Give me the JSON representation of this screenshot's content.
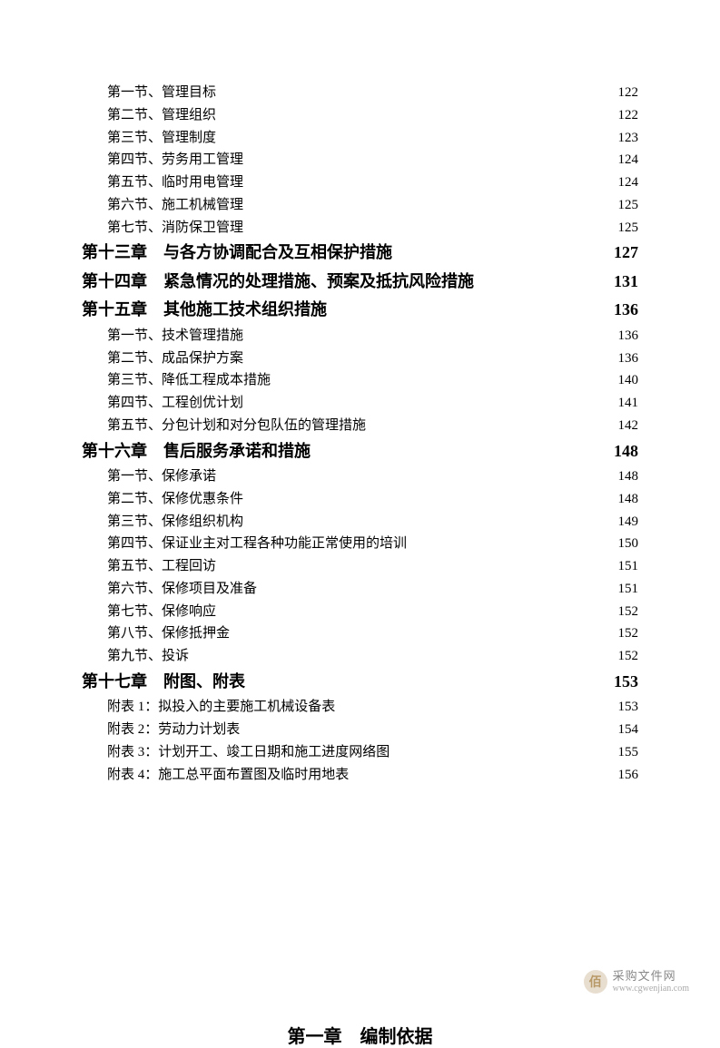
{
  "toc": [
    {
      "type": "sub",
      "label": "第一节、管理目标",
      "page": "122"
    },
    {
      "type": "sub",
      "label": "第二节、管理组织",
      "page": "122"
    },
    {
      "type": "sub",
      "label": "第三节、管理制度",
      "page": "123"
    },
    {
      "type": "sub",
      "label": "第四节、劳务用工管理",
      "page": "124"
    },
    {
      "type": "sub",
      "label": "第五节、临时用电管理",
      "page": "124"
    },
    {
      "type": "sub",
      "label": "第六节、施工机械管理",
      "page": "125"
    },
    {
      "type": "sub",
      "label": "第七节、消防保卫管理",
      "page": "125"
    },
    {
      "type": "chapter",
      "label": "第十三章　与各方协调配合及互相保护措施",
      "page": " 127"
    },
    {
      "type": "chapter",
      "label": "第十四章　紧急情况的处理措施、预案及抵抗风险措施",
      "page": "131"
    },
    {
      "type": "chapter",
      "label": "第十五章　其他施工技术组织措施",
      "page": " 136"
    },
    {
      "type": "sub",
      "label": "第一节、技术管理措施",
      "page": "136"
    },
    {
      "type": "sub",
      "label": "第二节、成品保护方案",
      "page": "136"
    },
    {
      "type": "sub",
      "label": "第三节、降低工程成本措施",
      "page": "140"
    },
    {
      "type": "sub",
      "label": "第四节、工程创优计划",
      "page": "141"
    },
    {
      "type": "sub",
      "label": "第五节、分包计划和对分包队伍的管理措施",
      "page": "142"
    },
    {
      "type": "chapter",
      "label": "第十六章　售后服务承诺和措施",
      "page": " 148"
    },
    {
      "type": "sub",
      "label": "第一节、保修承诺",
      "page": "148"
    },
    {
      "type": "sub",
      "label": "第二节、保修优惠条件",
      "page": "148"
    },
    {
      "type": "sub",
      "label": "第三节、保修组织机构",
      "page": "149"
    },
    {
      "type": "sub",
      "label": "第四节、保证业主对工程各种功能正常使用的培训",
      "page": "150"
    },
    {
      "type": "sub",
      "label": "第五节、工程回访",
      "page": "151"
    },
    {
      "type": "sub",
      "label": "第六节、保修项目及准备",
      "page": "151"
    },
    {
      "type": "sub",
      "label": "第七节、保修响应",
      "page": "152"
    },
    {
      "type": "sub",
      "label": "第八节、保修抵押金",
      "page": "152"
    },
    {
      "type": "sub",
      "label": "第九节、投诉",
      "page": "152"
    },
    {
      "type": "chapter",
      "label": "第十七章　附图、附表",
      "page": " 153"
    },
    {
      "type": "sub",
      "label": "附表 1：拟投入的主要施工机械设备表",
      "page": "153"
    },
    {
      "type": "sub",
      "label": "附表 2：劳动力计划表",
      "page": "154"
    },
    {
      "type": "sub",
      "label": "附表 3：计划开工、竣工日期和施工进度网络图",
      "page": "155"
    },
    {
      "type": "sub",
      "label": "附表 4：施工总平面布置图及临时用地表",
      "page": "156"
    }
  ],
  "heading": "第一章　编制依据",
  "watermark": {
    "icon": "佰",
    "title": "采购文件网",
    "url": "www.cgwenjian.com"
  }
}
